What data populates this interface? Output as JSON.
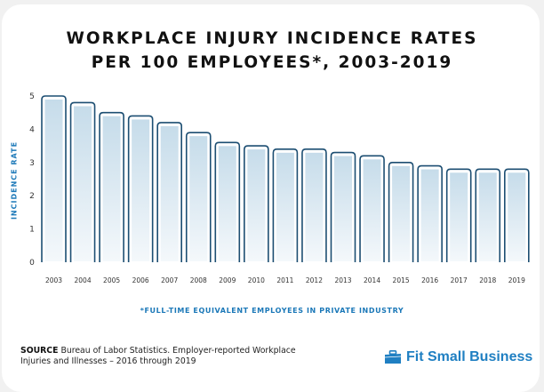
{
  "title_lines": [
    "WORKPLACE INJURY INCIDENCE RATES",
    "PER 100 EMPLOYEES*, 2003-2019"
  ],
  "footnote": "*FULL-TIME EQUIVALENT EMPLOYEES IN PRIVATE INDUSTRY",
  "source": {
    "label": "SOURCE",
    "text": "Bureau of Labor Statistics. Employer-reported Workplace Injuries and Illnesses – 2016 through 2019"
  },
  "brand": {
    "name": "Fit Small Business",
    "icon": "briefcase-icon"
  },
  "colors": {
    "bar_outline": "#1c4e72",
    "bar_fill_top": "#c6dcea",
    "bar_fill_bottom": "#f4f8fb",
    "accent": "#1b78b8"
  },
  "chart_data": {
    "type": "bar",
    "title": "WORKPLACE INJURY INCIDENCE RATES PER 100 EMPLOYEES*, 2003-2019",
    "xlabel": "",
    "ylabel": "INCIDENCE RATE",
    "categories": [
      "2003",
      "2004",
      "2005",
      "2006",
      "2007",
      "2008",
      "2009",
      "2010",
      "2011",
      "2012",
      "2013",
      "2014",
      "2015",
      "2016",
      "2017",
      "2018",
      "2019"
    ],
    "values": [
      5.0,
      4.8,
      4.5,
      4.4,
      4.2,
      3.9,
      3.6,
      3.5,
      3.4,
      3.4,
      3.3,
      3.2,
      3.0,
      2.9,
      2.8,
      2.8,
      2.8
    ],
    "ylim": [
      0,
      5
    ],
    "yticks": [
      0,
      1,
      2,
      3,
      4,
      5
    ],
    "grid": false,
    "legend": "none"
  }
}
